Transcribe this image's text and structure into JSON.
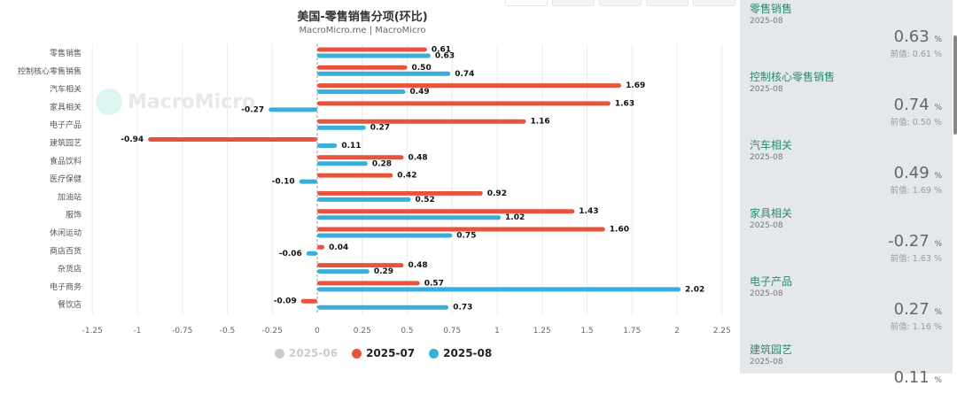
{
  "chart_data": {
    "type": "bar",
    "orientation": "horizontal",
    "title": "美国-零售销售分项(环比)",
    "subtitle": "MacroMicro.me | MacroMicro",
    "watermark": "MacroMicro",
    "categories": [
      "零售销售",
      "控制核心零售销售",
      "汽车相关",
      "家具相关",
      "电子产品",
      "建筑园艺",
      "食品饮料",
      "医疗保健",
      "加油站",
      "服饰",
      "休闲运动",
      "商店百货",
      "杂货店",
      "电子商务",
      "餐饮店"
    ],
    "series": [
      {
        "name": "2025-07",
        "color": "#e8533e",
        "values": [
          0.61,
          0.5,
          1.69,
          1.63,
          1.16,
          -0.94,
          0.48,
          0.42,
          0.92,
          1.43,
          1.6,
          0.04,
          0.48,
          0.57,
          -0.09
        ]
      },
      {
        "name": "2025-08",
        "color": "#3aaedb",
        "values": [
          0.63,
          0.74,
          0.49,
          -0.27,
          0.27,
          0.11,
          0.28,
          -0.1,
          0.52,
          1.02,
          0.75,
          -0.06,
          0.29,
          2.02,
          0.73
        ]
      }
    ],
    "legend": [
      {
        "name": "2025-06",
        "color": "#cccccc",
        "hidden": true
      },
      {
        "name": "2025-07",
        "color": "#e8533e",
        "hidden": false
      },
      {
        "name": "2025-08",
        "color": "#3aaedb",
        "hidden": false
      }
    ],
    "legend_position": "bottom",
    "xlim": [
      -1.25,
      2.25
    ],
    "xticks": [
      "-1.25",
      "-1",
      "-0.75",
      "-0.5",
      "-0.25",
      "0",
      "0.25",
      "0.5",
      "0.75",
      "1",
      "1.25",
      "1.5",
      "1.75",
      "2",
      "2.25"
    ],
    "grid": true
  },
  "panel": {
    "prev_label": "前值:",
    "unit": "%",
    "items": [
      {
        "name": "零售销售",
        "date": "2025-08",
        "value": "0.63",
        "prev": "0.61"
      },
      {
        "name": "控制核心零售销售",
        "date": "2025-08",
        "value": "0.74",
        "prev": "0.50"
      },
      {
        "name": "汽车相关",
        "date": "2025-08",
        "value": "0.49",
        "prev": "1.69"
      },
      {
        "name": "家具相关",
        "date": "2025-08",
        "value": "-0.27",
        "prev": "1.63"
      },
      {
        "name": "电子产品",
        "date": "2025-08",
        "value": "0.27",
        "prev": "1.16"
      },
      {
        "name": "建筑园艺",
        "date": "2025-08",
        "value": "0.11",
        "prev": ""
      }
    ]
  }
}
